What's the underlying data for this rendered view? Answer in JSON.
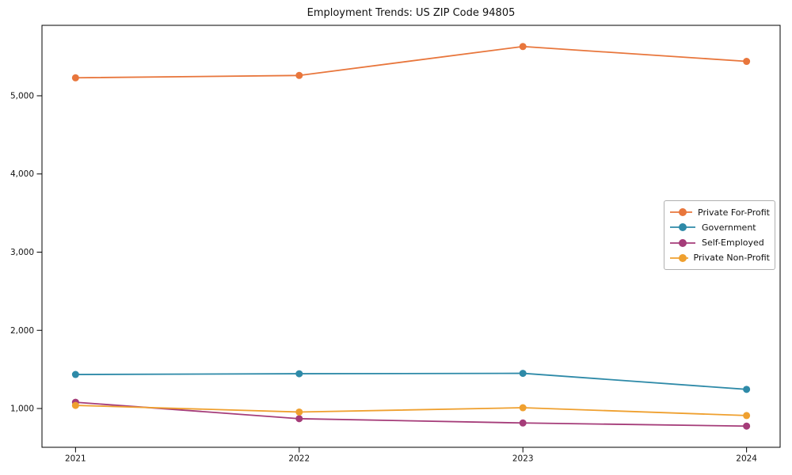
{
  "chart_data": {
    "type": "line",
    "title": "Employment Trends: US ZIP Code 94805",
    "xlabel": "",
    "ylabel": "",
    "x": [
      2021,
      2022,
      2023,
      2024
    ],
    "x_tick_labels": [
      "2021",
      "2022",
      "2023",
      "2024"
    ],
    "y_ticks": [
      {
        "value": 1000,
        "label": "1,000"
      },
      {
        "value": 2000,
        "label": "2,000"
      },
      {
        "value": 3000,
        "label": "3,000"
      },
      {
        "value": 4000,
        "label": "4,000"
      },
      {
        "value": 5000,
        "label": "5,000"
      }
    ],
    "ylim": [
      504,
      5901
    ],
    "xlim": [
      -0.15,
      3.15
    ],
    "grid": false,
    "legend_position": "center right",
    "series": [
      {
        "name": "Private For-Profit",
        "color": "#e8763c",
        "values": [
          5230,
          5260,
          5630,
          5440
        ]
      },
      {
        "name": "Government",
        "color": "#2e8aa8",
        "values": [
          1435,
          1445,
          1450,
          1245
        ]
      },
      {
        "name": "Self-Employed",
        "color": "#a53c79",
        "values": [
          1080,
          870,
          815,
          775
        ]
      },
      {
        "name": "Private Non-Profit",
        "color": "#efa02f",
        "values": [
          1040,
          955,
          1010,
          910
        ]
      }
    ],
    "colors": {
      "axis": "#000000",
      "text": "#111111",
      "legend_border": "#b0b0b0",
      "background": "#ffffff"
    }
  }
}
